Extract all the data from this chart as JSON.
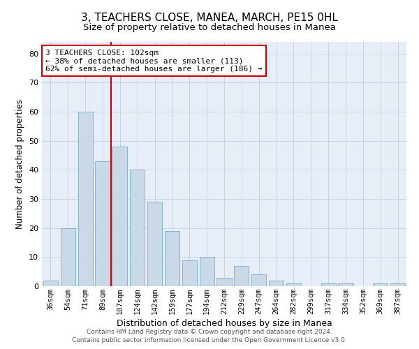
{
  "title": "3, TEACHERS CLOSE, MANEA, MARCH, PE15 0HL",
  "subtitle": "Size of property relative to detached houses in Manea",
  "xlabel": "Distribution of detached houses by size in Manea",
  "ylabel": "Number of detached properties",
  "categories": [
    "36sqm",
    "54sqm",
    "71sqm",
    "89sqm",
    "107sqm",
    "124sqm",
    "142sqm",
    "159sqm",
    "177sqm",
    "194sqm",
    "212sqm",
    "229sqm",
    "247sqm",
    "264sqm",
    "282sqm",
    "299sqm",
    "317sqm",
    "334sqm",
    "352sqm",
    "369sqm",
    "387sqm"
  ],
  "values": [
    2,
    20,
    60,
    43,
    48,
    40,
    29,
    19,
    9,
    10,
    3,
    7,
    4,
    2,
    1,
    0,
    1,
    1,
    0,
    1,
    1
  ],
  "bar_color": "#c9d9e8",
  "bar_edge_color": "#7aaac8",
  "vline_x": 3.5,
  "vline_color": "#cc0000",
  "annotation_text": "3 TEACHERS CLOSE: 102sqm\n← 38% of detached houses are smaller (113)\n62% of semi-detached houses are larger (186) →",
  "annotation_box_facecolor": "#ffffff",
  "annotation_box_edgecolor": "#cc0000",
  "ylim": [
    0,
    84
  ],
  "yticks": [
    0,
    10,
    20,
    30,
    40,
    50,
    60,
    70,
    80
  ],
  "grid_color": "#c8d4e4",
  "background_color": "#e8eef8",
  "title_fontsize": 11,
  "subtitle_fontsize": 9.5,
  "tick_fontsize": 7.5,
  "ylabel_fontsize": 8.5,
  "xlabel_fontsize": 9,
  "annotation_fontsize": 8,
  "footer_fontsize": 6.5,
  "footer_text": "Contains HM Land Registry data © Crown copyright and database right 2024.\nContains public sector information licensed under the Open Government Licence v3.0."
}
